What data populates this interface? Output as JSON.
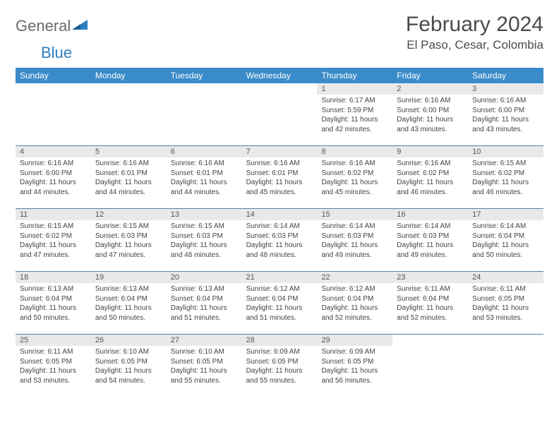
{
  "logo": {
    "word1": "General",
    "word2": "Blue"
  },
  "title": "February 2024",
  "location": "El Paso, Cesar, Colombia",
  "colors": {
    "header_bg": "#3a8bc9",
    "header_text": "#ffffff",
    "daynum_bg": "#e9e9e9",
    "divider": "#5a80a0",
    "logo_gray": "#6b6b6b",
    "logo_blue": "#2d7fbf"
  },
  "day_headers": [
    "Sunday",
    "Monday",
    "Tuesday",
    "Wednesday",
    "Thursday",
    "Friday",
    "Saturday"
  ],
  "weeks": [
    [
      null,
      null,
      null,
      null,
      {
        "n": "1",
        "sr": "6:17 AM",
        "ss": "5:59 PM",
        "dm": "42"
      },
      {
        "n": "2",
        "sr": "6:16 AM",
        "ss": "6:00 PM",
        "dm": "43"
      },
      {
        "n": "3",
        "sr": "6:16 AM",
        "ss": "6:00 PM",
        "dm": "43"
      }
    ],
    [
      {
        "n": "4",
        "sr": "6:16 AM",
        "ss": "6:00 PM",
        "dm": "44"
      },
      {
        "n": "5",
        "sr": "6:16 AM",
        "ss": "6:01 PM",
        "dm": "44"
      },
      {
        "n": "6",
        "sr": "6:16 AM",
        "ss": "6:01 PM",
        "dm": "44"
      },
      {
        "n": "7",
        "sr": "6:16 AM",
        "ss": "6:01 PM",
        "dm": "45"
      },
      {
        "n": "8",
        "sr": "6:16 AM",
        "ss": "6:02 PM",
        "dm": "45"
      },
      {
        "n": "9",
        "sr": "6:16 AM",
        "ss": "6:02 PM",
        "dm": "46"
      },
      {
        "n": "10",
        "sr": "6:15 AM",
        "ss": "6:02 PM",
        "dm": "46"
      }
    ],
    [
      {
        "n": "11",
        "sr": "6:15 AM",
        "ss": "6:02 PM",
        "dm": "47"
      },
      {
        "n": "12",
        "sr": "6:15 AM",
        "ss": "6:03 PM",
        "dm": "47"
      },
      {
        "n": "13",
        "sr": "6:15 AM",
        "ss": "6:03 PM",
        "dm": "48"
      },
      {
        "n": "14",
        "sr": "6:14 AM",
        "ss": "6:03 PM",
        "dm": "48"
      },
      {
        "n": "15",
        "sr": "6:14 AM",
        "ss": "6:03 PM",
        "dm": "49"
      },
      {
        "n": "16",
        "sr": "6:14 AM",
        "ss": "6:03 PM",
        "dm": "49"
      },
      {
        "n": "17",
        "sr": "6:14 AM",
        "ss": "6:04 PM",
        "dm": "50"
      }
    ],
    [
      {
        "n": "18",
        "sr": "6:13 AM",
        "ss": "6:04 PM",
        "dm": "50"
      },
      {
        "n": "19",
        "sr": "6:13 AM",
        "ss": "6:04 PM",
        "dm": "50"
      },
      {
        "n": "20",
        "sr": "6:13 AM",
        "ss": "6:04 PM",
        "dm": "51"
      },
      {
        "n": "21",
        "sr": "6:12 AM",
        "ss": "6:04 PM",
        "dm": "51"
      },
      {
        "n": "22",
        "sr": "6:12 AM",
        "ss": "6:04 PM",
        "dm": "52"
      },
      {
        "n": "23",
        "sr": "6:11 AM",
        "ss": "6:04 PM",
        "dm": "52"
      },
      {
        "n": "24",
        "sr": "6:11 AM",
        "ss": "6:05 PM",
        "dm": "53"
      }
    ],
    [
      {
        "n": "25",
        "sr": "6:11 AM",
        "ss": "6:05 PM",
        "dm": "53"
      },
      {
        "n": "26",
        "sr": "6:10 AM",
        "ss": "6:05 PM",
        "dm": "54"
      },
      {
        "n": "27",
        "sr": "6:10 AM",
        "ss": "6:05 PM",
        "dm": "55"
      },
      {
        "n": "28",
        "sr": "6:09 AM",
        "ss": "6:05 PM",
        "dm": "55"
      },
      {
        "n": "29",
        "sr": "6:09 AM",
        "ss": "6:05 PM",
        "dm": "56"
      },
      null,
      null
    ]
  ],
  "labels": {
    "sunrise": "Sunrise:",
    "sunset": "Sunset:",
    "daylight1": "Daylight: 11 hours",
    "daylight2a": "and ",
    "daylight2b": " minutes."
  }
}
